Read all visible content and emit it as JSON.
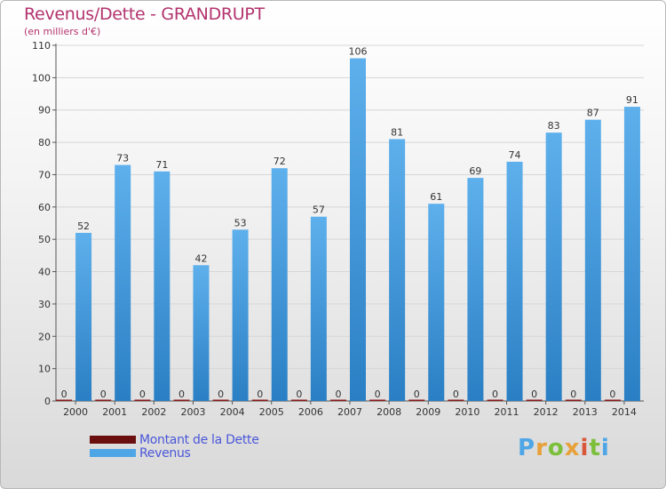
{
  "header": {
    "title": "Revenus/Dette - GRANDRUPT",
    "subtitle": "(en milliers d'€)"
  },
  "legend": {
    "items": [
      {
        "label": "Montant de la Dette",
        "color": "#6b0e0e"
      },
      {
        "label": "Revenus",
        "color": "#4ea6e6"
      }
    ]
  },
  "logo": {
    "text": "Proxiti"
  },
  "colors": {
    "bar_light": "#5eb0ec",
    "bar_dark": "#2a7fc4",
    "debt": "#8a1a1a",
    "axis": "#555555",
    "grid": "#d6d6d6"
  },
  "chart_data": {
    "type": "bar",
    "title": "Revenus/Dette - GRANDRUPT",
    "subtitle": "(en milliers d'€)",
    "categories": [
      "2000",
      "2001",
      "2002",
      "2003",
      "2004",
      "2005",
      "2006",
      "2007",
      "2008",
      "2009",
      "2010",
      "2011",
      "2012",
      "2013",
      "2014"
    ],
    "series": [
      {
        "name": "Montant de la Dette",
        "values": [
          0,
          0,
          0,
          0,
          0,
          0,
          0,
          0,
          0,
          0,
          0,
          0,
          0,
          0,
          0
        ]
      },
      {
        "name": "Revenus",
        "values": [
          52,
          73,
          71,
          42,
          53,
          72,
          57,
          106,
          81,
          61,
          69,
          74,
          83,
          87,
          91
        ]
      }
    ],
    "ylim": [
      0,
      110
    ],
    "yticks": [
      0,
      10,
      20,
      30,
      40,
      50,
      60,
      70,
      80,
      90,
      100,
      110
    ],
    "grid": true,
    "legend_position": "bottom-left"
  }
}
